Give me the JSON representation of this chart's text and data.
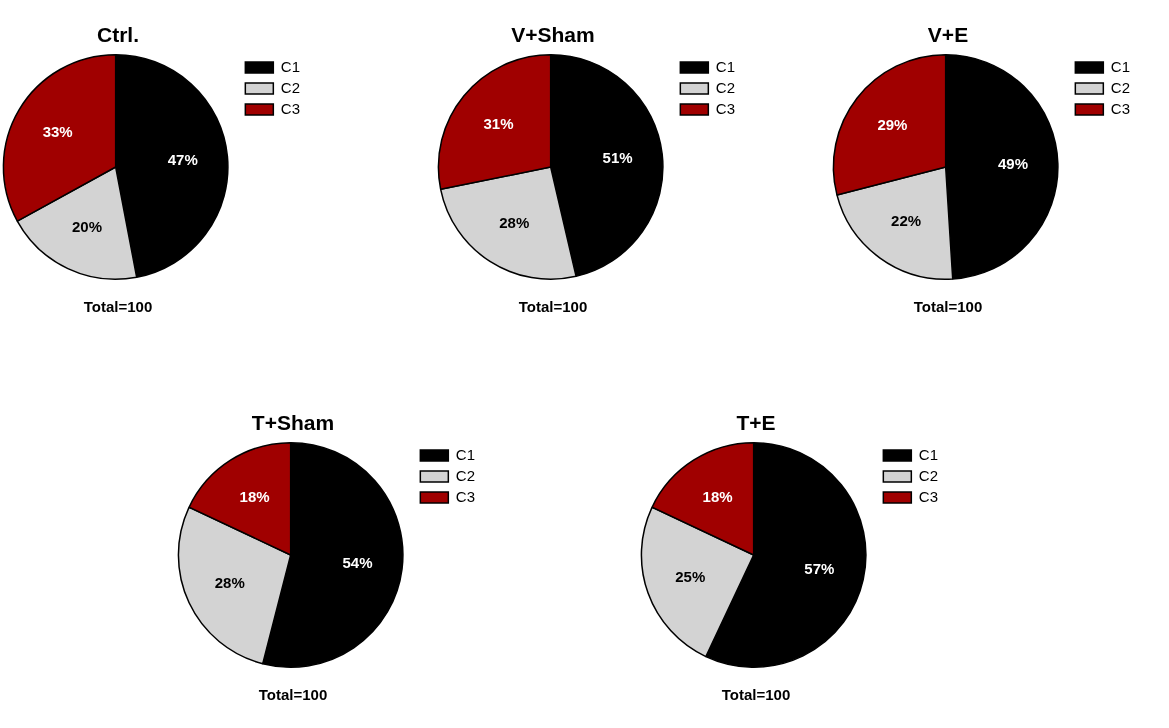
{
  "chart_data": [
    {
      "type": "pie",
      "title": "Ctrl.",
      "categories": [
        "C1",
        "C2",
        "C3"
      ],
      "values": [
        47,
        20,
        33
      ],
      "colors": [
        "#000000",
        "#d3d3d3",
        "#a00000"
      ],
      "value_labels": [
        "47%",
        "20%",
        "33%"
      ],
      "legend": "right",
      "annotations": [
        "Total=100"
      ]
    },
    {
      "type": "pie",
      "title": "V+Sham",
      "categories": [
        "C1",
        "C2",
        "C3"
      ],
      "values": [
        51,
        28,
        31
      ],
      "colors": [
        "#000000",
        "#d3d3d3",
        "#a00000"
      ],
      "value_labels": [
        "51%",
        "28%",
        "31%"
      ],
      "legend": "right",
      "annotations": [
        "Total=100"
      ]
    },
    {
      "type": "pie",
      "title": "V+E",
      "categories": [
        "C1",
        "C2",
        "C3"
      ],
      "values": [
        49,
        22,
        29
      ],
      "colors": [
        "#000000",
        "#d3d3d3",
        "#a00000"
      ],
      "value_labels": [
        "49%",
        "22%",
        "29%"
      ],
      "legend": "right",
      "annotations": [
        "Total=100"
      ]
    },
    {
      "type": "pie",
      "title": "T+Sham",
      "categories": [
        "C1",
        "C2",
        "C3"
      ],
      "values": [
        54,
        28,
        18
      ],
      "colors": [
        "#000000",
        "#d3d3d3",
        "#a00000"
      ],
      "value_labels": [
        "54%",
        "28%",
        "18%"
      ],
      "legend": "right",
      "annotations": [
        "Total=100"
      ]
    },
    {
      "type": "pie",
      "title": "T+E",
      "categories": [
        "C1",
        "C2",
        "C3"
      ],
      "values": [
        57,
        25,
        18
      ],
      "colors": [
        "#000000",
        "#d3d3d3",
        "#a00000"
      ],
      "value_labels": [
        "57%",
        "25%",
        "18%"
      ],
      "legend": "right",
      "annotations": [
        "Total=100"
      ]
    }
  ]
}
